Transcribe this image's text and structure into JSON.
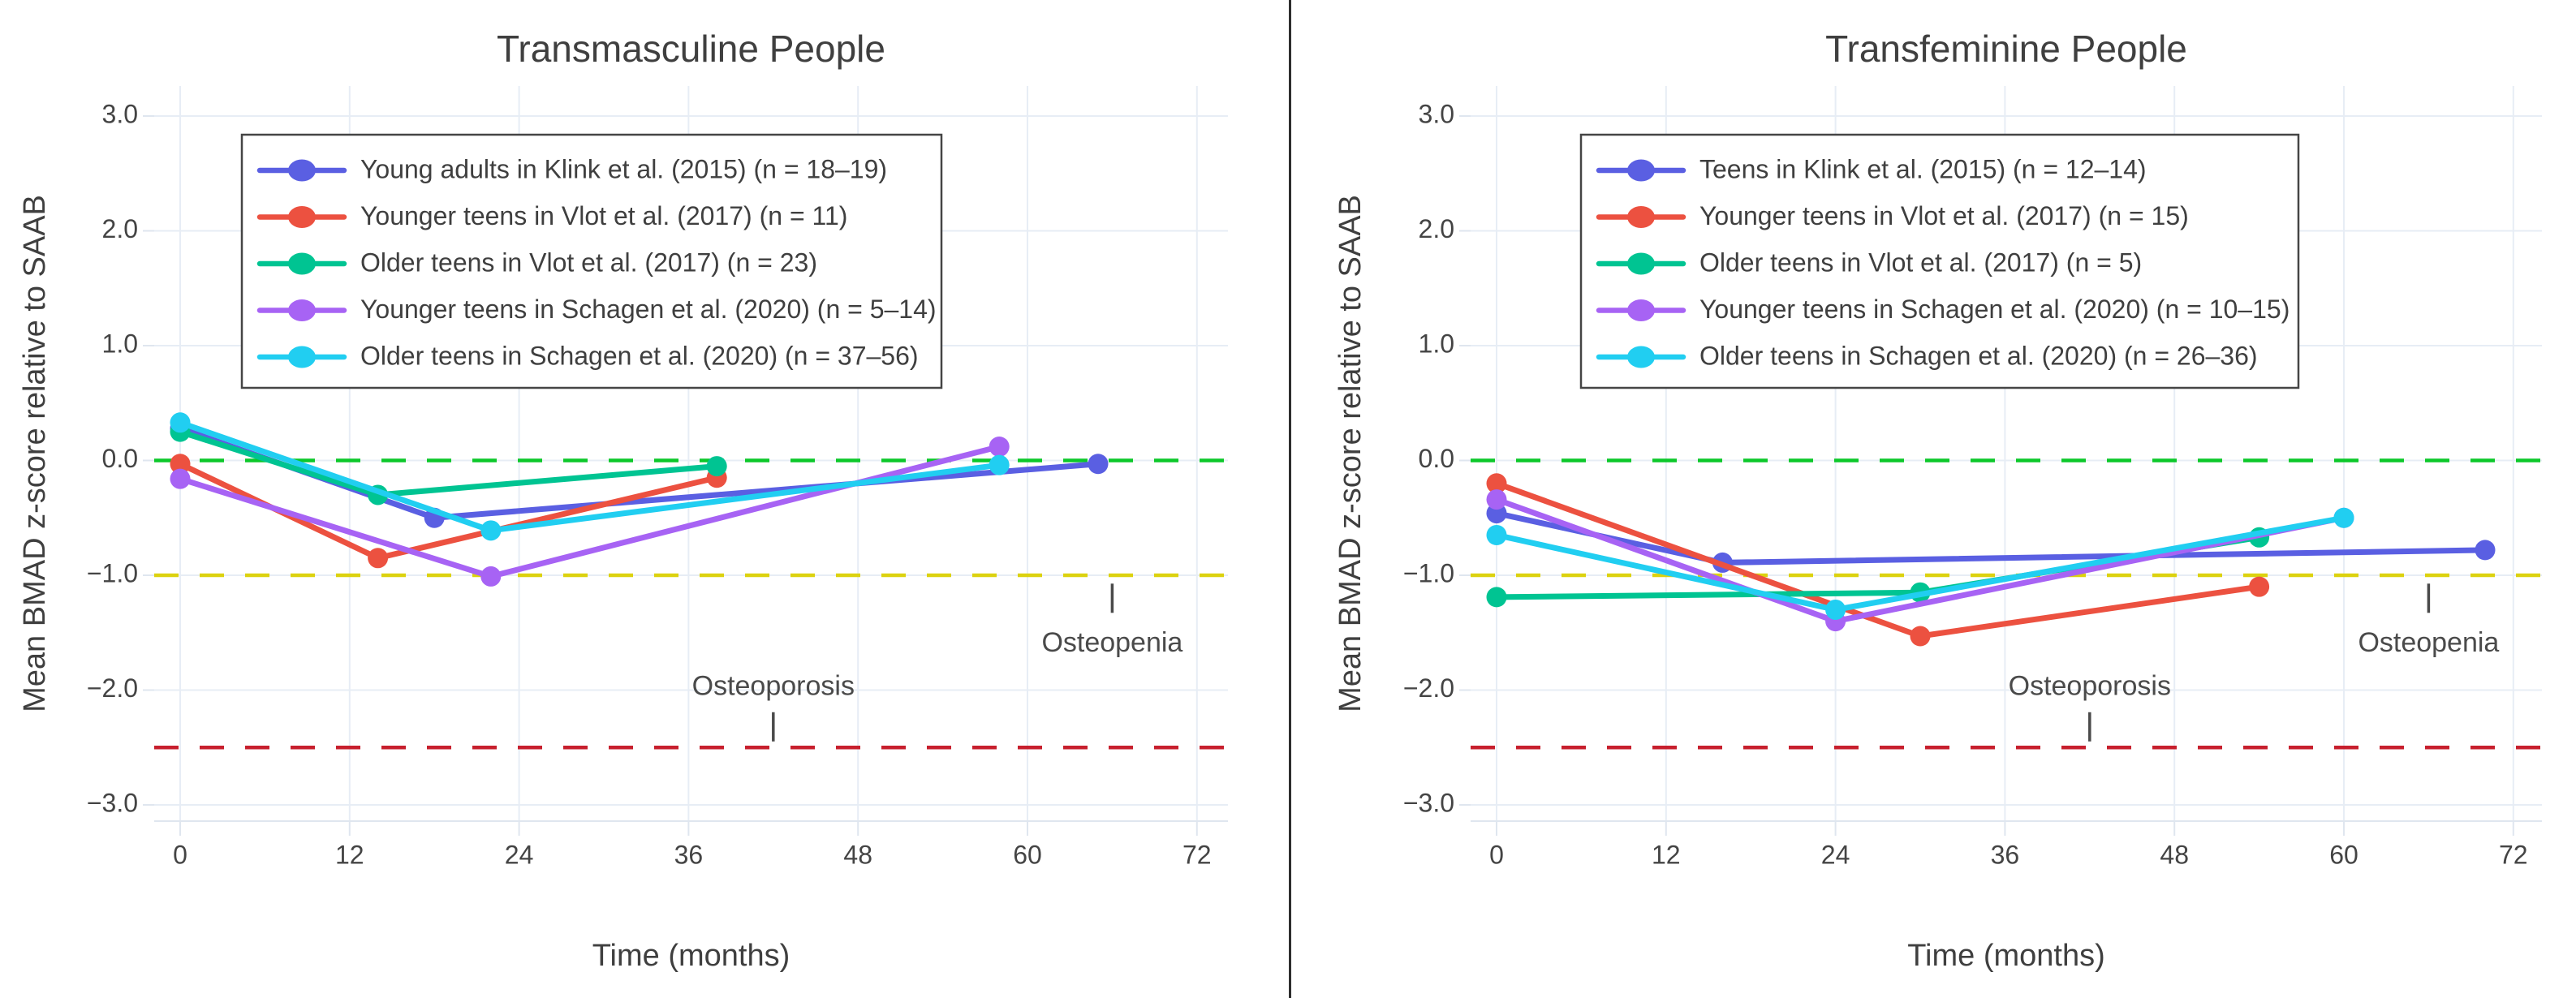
{
  "figure": {
    "background": "#ffffff",
    "divider_color": "#2e2e2e",
    "grid_color": "#e7edf5",
    "axis_line_color": "#dfe6ef",
    "text_color": "#3f3f3f",
    "tick_color": "#444444"
  },
  "chart_data": [
    {
      "type": "line",
      "title": "Transmasculine People",
      "xlabel": "Time (months)",
      "ylabel": "Mean BMAD z-score relative to SAAB",
      "xlim": [
        0,
        72
      ],
      "ylim": [
        -3,
        3
      ],
      "xticks": [
        0,
        12,
        24,
        36,
        48,
        60,
        72
      ],
      "ytick_labels": [
        "3.0",
        "2.0",
        "1.0",
        "0.0",
        "−1.0",
        "−2.0",
        "−3.0"
      ],
      "ytick_values": [
        3,
        2,
        1,
        0,
        -1,
        -2,
        -3
      ],
      "grid": true,
      "legend_position": "upper left",
      "reference_lines": [
        {
          "name": "zero-line",
          "y": 0,
          "color": "#0cc82a",
          "style": "dashed"
        },
        {
          "name": "osteopenia-threshold",
          "y": -1,
          "color": "#dcd20f",
          "style": "dashed"
        },
        {
          "name": "osteoporosis-threshold",
          "y": -2.5,
          "color": "#c71f2d",
          "style": "dashed"
        }
      ],
      "annotations": [
        {
          "text": "Osteoporosis",
          "x": 42,
          "label_y": -1.98,
          "tick_y": -2.32
        },
        {
          "text": "Osteopenia",
          "x": 66,
          "label_y": -1.6,
          "tick_y": -1.2
        }
      ],
      "series": [
        {
          "name": "Young adults in Klink et al. (2015) (n = 18–19)",
          "color": "#5a5fe2",
          "points": [
            [
              0,
              0.28
            ],
            [
              18,
              -0.5
            ],
            [
              65,
              -0.03
            ]
          ]
        },
        {
          "name": "Younger teens in Vlot et al. (2017) (n = 11)",
          "color": "#ec5140",
          "points": [
            [
              0,
              -0.03
            ],
            [
              14,
              -0.85
            ],
            [
              38,
              -0.15
            ]
          ]
        },
        {
          "name": "Older teens in Vlot et al. (2017) (n = 23)",
          "color": "#00c492",
          "points": [
            [
              0,
              0.25
            ],
            [
              14,
              -0.3
            ],
            [
              38,
              -0.05
            ]
          ]
        },
        {
          "name": "Younger teens in Schagen et al. (2020) (n = 5–14)",
          "color": "#a763f4",
          "points": [
            [
              0,
              -0.16
            ],
            [
              22,
              -1.01
            ],
            [
              58,
              0.12
            ]
          ]
        },
        {
          "name": "Older teens in Schagen et al. (2020) (n = 37–56)",
          "color": "#21cef1",
          "points": [
            [
              0,
              0.33
            ],
            [
              22,
              -0.61
            ],
            [
              58,
              -0.04
            ]
          ]
        }
      ]
    },
    {
      "type": "line",
      "title": "Transfeminine People",
      "xlabel": "Time (months)",
      "ylabel": "Mean BMAD z-score relative to SAAB",
      "xlim": [
        0,
        72
      ],
      "ylim": [
        -3,
        3
      ],
      "xticks": [
        0,
        12,
        24,
        36,
        48,
        60,
        72
      ],
      "ytick_labels": [
        "3.0",
        "2.0",
        "1.0",
        "0.0",
        "−1.0",
        "−2.0",
        "−3.0"
      ],
      "ytick_values": [
        3,
        2,
        1,
        0,
        -1,
        -2,
        -3
      ],
      "grid": true,
      "legend_position": "upper left",
      "reference_lines": [
        {
          "name": "zero-line",
          "y": 0,
          "color": "#0cc82a",
          "style": "dashed"
        },
        {
          "name": "osteopenia-threshold",
          "y": -1,
          "color": "#dcd20f",
          "style": "dashed"
        },
        {
          "name": "osteoporosis-threshold",
          "y": -2.5,
          "color": "#c71f2d",
          "style": "dashed"
        }
      ],
      "annotations": [
        {
          "text": "Osteoporosis",
          "x": 42,
          "label_y": -1.98,
          "tick_y": -2.32
        },
        {
          "text": "Osteopenia",
          "x": 66,
          "label_y": -1.6,
          "tick_y": -1.2
        }
      ],
      "series": [
        {
          "name": "Teens in Klink et al. (2015) (n = 12–14)",
          "color": "#5a5fe2",
          "points": [
            [
              0,
              -0.46
            ],
            [
              16,
              -0.89
            ],
            [
              70,
              -0.78
            ]
          ]
        },
        {
          "name": "Younger teens in Vlot et al. (2017) (n = 15)",
          "color": "#ec5140",
          "points": [
            [
              0,
              -0.2
            ],
            [
              30,
              -1.53
            ],
            [
              54,
              -1.1
            ]
          ]
        },
        {
          "name": "Older teens in Vlot et al. (2017) (n = 5)",
          "color": "#00c492",
          "points": [
            [
              0,
              -1.19
            ],
            [
              30,
              -1.15
            ],
            [
              54,
              -0.67
            ]
          ]
        },
        {
          "name": "Younger teens in Schagen et al. (2020) (n = 10–15)",
          "color": "#a763f4",
          "points": [
            [
              0,
              -0.34
            ],
            [
              24,
              -1.4
            ],
            [
              60,
              -0.5
            ]
          ]
        },
        {
          "name": "Older teens in Schagen et al. (2020) (n = 26–36)",
          "color": "#21cef1",
          "points": [
            [
              0,
              -0.65
            ],
            [
              24,
              -1.3
            ],
            [
              60,
              -0.5
            ]
          ]
        }
      ]
    }
  ]
}
